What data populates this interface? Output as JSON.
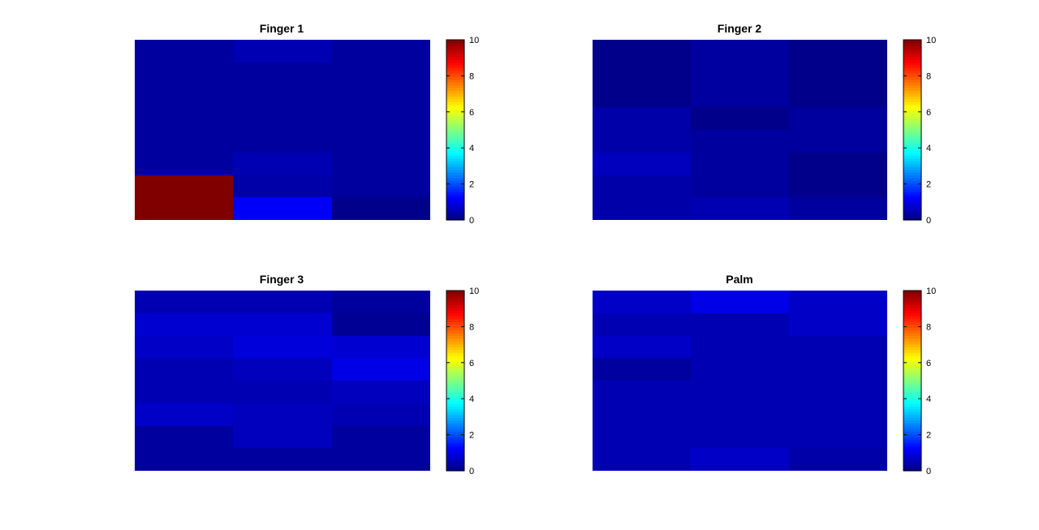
{
  "chart_data": [
    {
      "type": "heatmap",
      "title": "Finger 1",
      "rows": 8,
      "cols": 3,
      "values": [
        [
          0.3,
          0.5,
          0.3
        ],
        [
          0.3,
          0.3,
          0.3
        ],
        [
          0.3,
          0.3,
          0.3
        ],
        [
          0.3,
          0.3,
          0.3
        ],
        [
          0.3,
          0.3,
          0.3
        ],
        [
          0.3,
          0.5,
          0.3
        ],
        [
          10.0,
          0.4,
          0.3
        ],
        [
          10.0,
          1.2,
          0.1
        ]
      ],
      "colorbar": {
        "min": 0,
        "max": 10,
        "ticks": [
          "0",
          "2",
          "4",
          "6",
          "8",
          "10"
        ],
        "colormap": "jet"
      }
    },
    {
      "type": "heatmap",
      "title": "Finger 2",
      "rows": 8,
      "cols": 3,
      "values": [
        [
          0.1,
          0.3,
          0.1
        ],
        [
          0.1,
          0.3,
          0.1
        ],
        [
          0.1,
          0.3,
          0.1
        ],
        [
          0.4,
          0.1,
          0.3
        ],
        [
          0.4,
          0.3,
          0.3
        ],
        [
          0.6,
          0.3,
          0.1
        ],
        [
          0.4,
          0.3,
          0.1
        ],
        [
          0.4,
          0.5,
          0.3
        ]
      ],
      "colorbar": {
        "min": 0,
        "max": 10,
        "ticks": [
          "0",
          "2",
          "4",
          "6",
          "8",
          "10"
        ],
        "colormap": "jet"
      }
    },
    {
      "type": "heatmap",
      "title": "Finger 3",
      "rows": 8,
      "cols": 3,
      "values": [
        [
          0.5,
          0.5,
          0.3
        ],
        [
          0.8,
          0.8,
          0.2
        ],
        [
          0.7,
          0.9,
          0.8
        ],
        [
          0.5,
          0.6,
          1.0
        ],
        [
          0.5,
          0.5,
          0.6
        ],
        [
          0.7,
          0.6,
          0.5
        ],
        [
          0.3,
          0.6,
          0.3
        ],
        [
          0.3,
          0.3,
          0.3
        ]
      ],
      "colorbar": {
        "min": 0,
        "max": 10,
        "ticks": [
          "0",
          "2",
          "4",
          "6",
          "8",
          "10"
        ],
        "colormap": "jet"
      }
    },
    {
      "type": "heatmap",
      "title": "Palm",
      "rows": 8,
      "cols": 3,
      "values": [
        [
          0.7,
          1.0,
          0.7
        ],
        [
          0.5,
          0.5,
          0.7
        ],
        [
          0.7,
          0.5,
          0.5
        ],
        [
          0.3,
          0.5,
          0.5
        ],
        [
          0.5,
          0.5,
          0.5
        ],
        [
          0.5,
          0.5,
          0.5
        ],
        [
          0.5,
          0.5,
          0.5
        ],
        [
          0.5,
          0.7,
          0.4
        ]
      ],
      "colorbar": {
        "min": 0,
        "max": 10,
        "ticks": [
          "0",
          "2",
          "4",
          "6",
          "8",
          "10"
        ],
        "colormap": "jet"
      }
    }
  ]
}
